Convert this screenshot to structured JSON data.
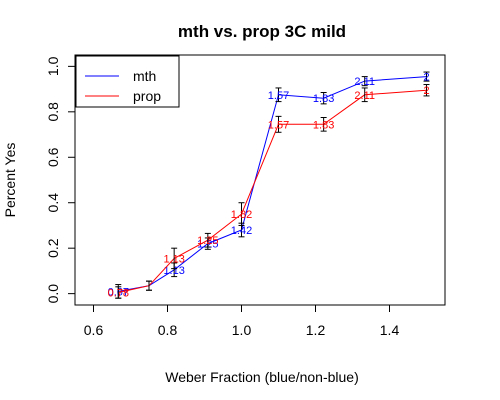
{
  "chart_data": {
    "type": "line",
    "title": "mth vs. prop 3C mild",
    "xlabel": "Weber Fraction (blue/non-blue)",
    "ylabel": "Percent Yes",
    "xlim": [
      0.55,
      1.55
    ],
    "ylim": [
      -0.05,
      1.05
    ],
    "x_ticks": [
      0.6,
      0.8,
      1.0,
      1.2,
      1.4
    ],
    "y_ticks": [
      0.0,
      0.2,
      0.4,
      0.6,
      0.8,
      1.0
    ],
    "x_tick_labels": [
      "0.6",
      "0.8",
      "1.0",
      "1.2",
      "1.4"
    ],
    "y_tick_labels": [
      "0.0",
      "0.2",
      "0.4",
      "0.6",
      "0.8",
      "1.0"
    ],
    "grid": false,
    "legend_position": "top-left",
    "series": [
      {
        "name": "mth",
        "color": "#0000ff",
        "points": [
          {
            "x": 0.667,
            "y": 0.01,
            "err": 0.03,
            "label": "0.67"
          },
          {
            "x": 0.75,
            "y": 0.035,
            "err": 0.02,
            "label": ""
          },
          {
            "x": 0.818,
            "y": 0.105,
            "err": 0.03,
            "label": "1.13"
          },
          {
            "x": 0.909,
            "y": 0.22,
            "err": 0.025,
            "label": "1.25"
          },
          {
            "x": 1.0,
            "y": 0.28,
            "err": 0.03,
            "label": "1.42"
          },
          {
            "x": 1.1,
            "y": 0.875,
            "err": 0.03,
            "label": "1.57"
          },
          {
            "x": 1.222,
            "y": 0.86,
            "err": 0.025,
            "label": "1.83"
          },
          {
            "x": 1.333,
            "y": 0.935,
            "err": 0.02,
            "label": "2.11"
          },
          {
            "x": 1.5,
            "y": 0.955,
            "err": 0.02,
            "label": "2"
          }
        ]
      },
      {
        "name": "prop",
        "color": "#ff0000",
        "points": [
          {
            "x": 0.667,
            "y": 0.005,
            "err": 0.025,
            "label": "0.78"
          },
          {
            "x": 0.75,
            "y": 0.035,
            "err": 0.02,
            "label": ""
          },
          {
            "x": 0.818,
            "y": 0.155,
            "err": 0.045,
            "label": "1.13"
          },
          {
            "x": 0.909,
            "y": 0.235,
            "err": 0.03,
            "label": "1.25"
          },
          {
            "x": 1.0,
            "y": 0.35,
            "err": 0.05,
            "label": "1.82"
          },
          {
            "x": 1.1,
            "y": 0.745,
            "err": 0.035,
            "label": "1.57"
          },
          {
            "x": 1.222,
            "y": 0.745,
            "err": 0.03,
            "label": "1.83"
          },
          {
            "x": 1.333,
            "y": 0.875,
            "err": 0.03,
            "label": "2.11"
          },
          {
            "x": 1.5,
            "y": 0.895,
            "err": 0.025,
            "label": "2"
          }
        ]
      }
    ]
  }
}
